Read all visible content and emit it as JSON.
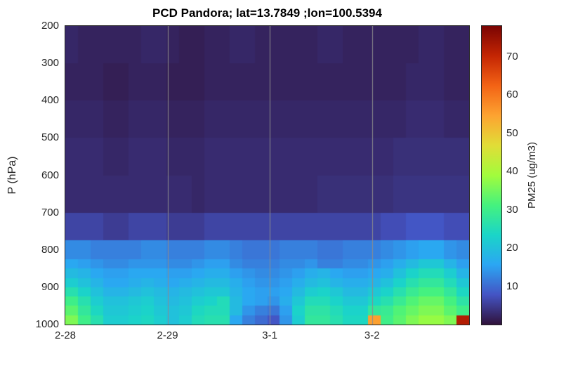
{
  "title": "PCD Pandora; lat=13.7849 ;lon=100.5394",
  "axes": {
    "ylabel": "P (hPa)",
    "y_ticks": [
      200,
      300,
      400,
      500,
      600,
      700,
      800,
      900,
      1000
    ],
    "x_ticks": [
      {
        "label": "2-28",
        "day": 0
      },
      {
        "label": "2-29",
        "day": 1
      },
      {
        "label": "3-1",
        "day": 2
      },
      {
        "label": "3-2",
        "day": 3
      }
    ],
    "x_span_days": 3.95,
    "gridline_days": [
      1,
      2,
      3
    ],
    "gridline_color": "#8c8c8c",
    "p_range": [
      200,
      1000
    ]
  },
  "colorbar": {
    "label": "PM25 (ug/m3)",
    "ticks": [
      10,
      20,
      30,
      40,
      50,
      60,
      70
    ],
    "range": [
      0,
      78
    ]
  },
  "chart_data": {
    "type": "heatmap",
    "title": "PCD Pandora; lat=13.7849 ;lon=100.5394",
    "xlabel": "",
    "ylabel": "P (hPa)",
    "colorbar_label": "PM25 (ug/m3)",
    "x_tick_labels": [
      "2-28",
      "2-29",
      "3-1",
      "3-2"
    ],
    "x_range_days": [
      0,
      3.95
    ],
    "columns": 32,
    "value_range": [
      0,
      78
    ],
    "p_edges": [
      200,
      300,
      400,
      500,
      600,
      700,
      775,
      825,
      850,
      875,
      900,
      925,
      950,
      975,
      1000
    ],
    "values_ug_m3": [
      [
        2.5,
        2,
        2,
        2,
        2,
        2,
        2.5,
        2.5,
        2,
        1.5,
        1.5,
        2,
        2,
        2.5,
        2.5,
        2,
        2,
        2,
        2,
        2,
        2.5,
        2.5,
        2,
        2,
        2,
        2,
        2,
        2,
        2.5,
        2.5,
        2,
        2
      ],
      [
        2,
        2,
        2,
        1.5,
        1.5,
        2,
        2,
        2,
        1.5,
        1.5,
        1.5,
        2,
        2,
        2,
        2,
        2,
        2,
        2,
        2,
        2,
        2,
        2,
        2,
        2,
        2,
        2,
        2,
        2.5,
        2.5,
        2.5,
        2,
        2
      ],
      [
        2.5,
        2.5,
        2.5,
        2,
        2,
        2.5,
        2.5,
        2.5,
        2,
        2,
        2,
        2.5,
        2.5,
        2.5,
        2.5,
        2.5,
        2.5,
        2.5,
        2.5,
        2.5,
        2.5,
        2.5,
        2.5,
        2.5,
        2.5,
        2.5,
        2.5,
        3,
        3,
        3,
        2.5,
        2.5
      ],
      [
        3,
        3,
        3,
        2.5,
        2.5,
        3,
        3,
        3,
        2.5,
        2.5,
        2.5,
        3,
        3,
        3,
        3,
        3,
        3,
        3,
        3,
        3,
        3,
        3,
        3,
        3,
        3,
        3,
        3.5,
        3.5,
        3.5,
        3.5,
        3.5,
        3.5
      ],
      [
        3,
        3,
        3,
        3,
        3,
        3,
        3,
        3,
        3,
        3,
        2.5,
        3,
        3,
        3,
        3,
        3,
        3,
        3,
        3,
        3,
        3.5,
        3.5,
        3.5,
        3.5,
        3.5,
        3.5,
        4,
        4,
        4,
        4,
        4,
        4
      ],
      [
        6,
        6,
        6,
        5,
        5,
        6,
        6,
        6,
        5,
        5,
        5,
        6,
        6,
        6,
        6,
        6,
        6,
        6,
        6,
        6,
        6,
        6,
        6,
        6,
        6,
        7,
        7,
        8,
        8,
        8,
        7,
        7
      ],
      [
        13,
        13,
        12,
        12,
        12,
        12,
        13,
        13,
        12,
        12,
        12,
        13,
        13,
        12,
        11,
        11,
        11,
        12,
        12,
        12,
        11,
        11,
        12,
        12,
        12,
        13,
        14,
        15,
        16,
        16,
        14,
        13
      ],
      [
        16,
        15,
        14,
        13,
        13,
        14,
        14,
        14,
        13,
        13,
        14,
        15,
        15,
        13,
        12,
        12,
        12,
        13,
        13,
        14,
        12,
        12,
        13,
        13,
        14,
        15,
        17,
        19,
        21,
        21,
        18,
        15
      ],
      [
        19,
        18,
        16,
        15,
        15,
        16,
        16,
        16,
        15,
        15,
        16,
        17,
        17,
        15,
        14,
        13,
        13,
        14,
        15,
        17,
        18,
        16,
        15,
        15,
        16,
        17,
        20,
        23,
        25,
        25,
        22,
        18
      ],
      [
        22,
        20,
        18,
        16,
        16,
        17,
        18,
        17,
        16,
        17,
        18,
        19,
        19,
        17,
        15,
        14,
        14,
        15,
        17,
        19,
        20,
        18,
        17,
        17,
        18,
        20,
        23,
        26,
        28,
        28,
        25,
        21
      ],
      [
        26,
        23,
        20,
        18,
        18,
        19,
        20,
        19,
        18,
        19,
        20,
        21,
        21,
        18,
        16,
        15,
        15,
        16,
        19,
        22,
        23,
        21,
        19,
        19,
        21,
        23,
        26,
        29,
        31,
        31,
        28,
        24
      ],
      [
        30,
        26,
        22,
        20,
        20,
        21,
        22,
        20,
        19,
        20,
        22,
        23,
        25,
        19,
        16,
        15,
        14,
        17,
        21,
        25,
        25,
        23,
        21,
        21,
        24,
        26,
        29,
        32,
        34,
        34,
        31,
        27
      ],
      [
        33,
        28,
        24,
        21,
        21,
        22,
        23,
        21,
        20,
        21,
        24,
        25,
        25,
        19,
        14,
        12,
        11,
        15,
        23,
        27,
        27,
        25,
        23,
        23,
        28,
        29,
        32,
        34,
        36,
        36,
        33,
        30
      ],
      [
        36,
        30,
        26,
        22,
        22,
        23,
        24,
        22,
        20,
        22,
        25,
        26,
        26,
        16,
        12,
        10,
        8,
        14,
        22,
        28,
        28,
        26,
        24,
        24,
        55,
        30,
        33,
        36,
        38,
        38,
        36,
        72
      ]
    ],
    "colormap_stops": [
      [
        0.0,
        "#30123b"
      ],
      [
        0.1,
        "#4454c4"
      ],
      [
        0.2,
        "#2ba6f3"
      ],
      [
        0.3,
        "#1ad5c8"
      ],
      [
        0.4,
        "#45f27e"
      ],
      [
        0.5,
        "#a2fc3c"
      ],
      [
        0.6,
        "#e1dd37"
      ],
      [
        0.7,
        "#fda331"
      ],
      [
        0.8,
        "#f36315"
      ],
      [
        0.9,
        "#c42503"
      ],
      [
        1.0,
        "#7a0403"
      ]
    ]
  }
}
